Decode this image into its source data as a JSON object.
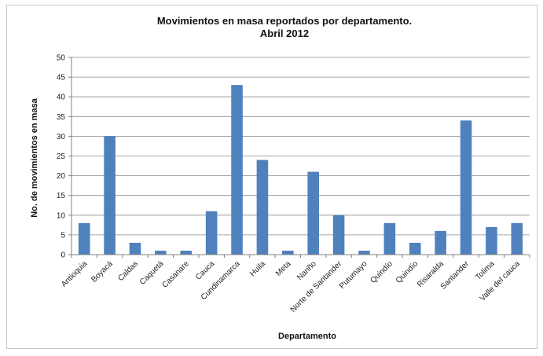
{
  "chart_data": {
    "type": "bar",
    "title": "Movimientos en masa reportados por departamento.",
    "subtitle": "Abril 2012",
    "xlabel": "Departamento",
    "ylabel": "No. de movimientos en masa",
    "ylim": [
      0,
      50
    ],
    "yticks": [
      0,
      5,
      10,
      15,
      20,
      25,
      30,
      35,
      40,
      45,
      50
    ],
    "grid": true,
    "legend": "none",
    "bar_color": "#4f81bd",
    "categories": [
      "Antioquia",
      "Boyacá",
      "Caldas",
      "Caquetá",
      "Casanare",
      "Cauca",
      "Cundinamarca",
      "Huila",
      "Meta",
      "Nariño",
      "Norte de Santander",
      "Putumayo",
      "Quindío",
      "Quindío",
      "Risaralda",
      "Santander",
      "Tolima",
      "Valle del cauca"
    ],
    "values": [
      8,
      30,
      3,
      1,
      1,
      11,
      43,
      24,
      1,
      21,
      10,
      1,
      8,
      3,
      6,
      34,
      7,
      8
    ]
  }
}
